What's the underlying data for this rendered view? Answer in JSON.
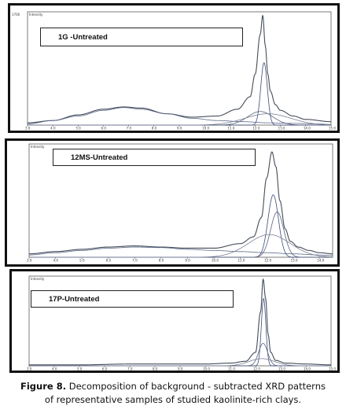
{
  "caption": {
    "figure_label": "Figure 8.",
    "line1": " Decomposition of background - subtracted XRD patterns",
    "line2": "of representative samples of  studied kaolinite-rich clays."
  },
  "chart_data": [
    {
      "type": "line",
      "title": "1G -Untreated",
      "ylabel": "Intensity",
      "ytick": "1700",
      "x_ticks": [
        "3.0",
        "4.0",
        "5.0",
        "6.0",
        "7.0",
        "8.0",
        "9.0",
        "10.0",
        "11.0",
        "12.0",
        "13.0",
        "14.0",
        "15.0"
      ],
      "xlim": [
        3,
        15
      ],
      "series": [
        {
          "role": "measured",
          "x": [
            3,
            4,
            5,
            6,
            6.8,
            7.5,
            8.5,
            9.5,
            10.5,
            11.3,
            11.8,
            12.0,
            12.2,
            12.3,
            12.4,
            12.5,
            12.6,
            12.8,
            13.0,
            13.5,
            14,
            15
          ],
          "y": [
            0.02,
            0.04,
            0.09,
            0.14,
            0.16,
            0.15,
            0.1,
            0.07,
            0.08,
            0.14,
            0.25,
            0.45,
            0.8,
            0.97,
            0.7,
            0.45,
            0.3,
            0.18,
            0.13,
            0.08,
            0.05,
            0.03
          ]
        },
        {
          "role": "fit-broad",
          "x": [
            3,
            4,
            5,
            6,
            6.8,
            7.5,
            8.5,
            9.5,
            10.5,
            11.5,
            12.5,
            13.5,
            14.5,
            15
          ],
          "y": [
            0.01,
            0.04,
            0.08,
            0.13,
            0.155,
            0.14,
            0.1,
            0.06,
            0.04,
            0.03,
            0.02,
            0.015,
            0.01,
            0.005
          ]
        },
        {
          "role": "fit-peak-1",
          "center": 12.35,
          "height": 0.55,
          "width": 0.13
        },
        {
          "role": "fit-peak-2",
          "center": 12.2,
          "height": 0.12,
          "width": 0.5
        },
        {
          "role": "fit-peak-3",
          "center": 12.5,
          "height": 0.1,
          "width": 0.9
        }
      ]
    },
    {
      "type": "line",
      "title": "12MS-Untreated",
      "ylabel": "Intensity",
      "ytick": "",
      "x_ticks": [
        "3.0",
        "4.0",
        "5.0",
        "6.0",
        "7.0",
        "8.0",
        "9.0",
        "10.0",
        "11.0",
        "12.0",
        "13.0",
        "14.0"
      ],
      "xlim": [
        3,
        14.5
      ],
      "series": [
        {
          "role": "measured",
          "x": [
            3,
            4,
            5,
            6,
            7,
            8,
            9,
            10,
            11,
            11.5,
            11.8,
            12.0,
            12.2,
            12.35,
            12.5,
            12.7,
            12.9,
            13.2,
            13.6,
            14,
            14.5
          ],
          "y": [
            0.03,
            0.05,
            0.07,
            0.09,
            0.1,
            0.09,
            0.08,
            0.08,
            0.12,
            0.18,
            0.35,
            0.7,
            0.93,
            0.8,
            0.5,
            0.25,
            0.14,
            0.09,
            0.06,
            0.04,
            0.03
          ]
        },
        {
          "role": "fit-broad",
          "x": [
            3,
            4,
            5,
            6,
            7,
            8,
            9,
            10,
            11,
            12,
            13,
            14,
            14.5
          ],
          "y": [
            0.02,
            0.04,
            0.06,
            0.08,
            0.09,
            0.085,
            0.07,
            0.06,
            0.05,
            0.04,
            0.03,
            0.02,
            0.015
          ]
        },
        {
          "role": "fit-peak-1",
          "center": 12.25,
          "height": 0.55,
          "width": 0.2
        },
        {
          "role": "fit-peak-2",
          "center": 12.4,
          "height": 0.4,
          "width": 0.25
        },
        {
          "role": "fit-peak-3",
          "center": 12.1,
          "height": 0.2,
          "width": 0.8
        }
      ]
    },
    {
      "type": "line",
      "title": "17P-Untreated",
      "ylabel": "Intensity",
      "ytick": "",
      "x_ticks": [
        "3.0",
        "4.0",
        "5.0",
        "6.0",
        "7.0",
        "8.0",
        "9.0",
        "10.0",
        "11.0",
        "12.0",
        "13.0",
        "14.0",
        "15.0"
      ],
      "xlim": [
        3,
        15
      ],
      "series": [
        {
          "role": "measured",
          "x": [
            3,
            5,
            7,
            9,
            10,
            11,
            11.6,
            12.0,
            12.2,
            12.3,
            12.4,
            12.5,
            12.6,
            12.8,
            13.2,
            14,
            15
          ],
          "y": [
            0.01,
            0.01,
            0.02,
            0.02,
            0.02,
            0.03,
            0.05,
            0.15,
            0.6,
            0.97,
            0.75,
            0.35,
            0.15,
            0.06,
            0.03,
            0.02,
            0.01
          ]
        },
        {
          "role": "fit-peak-1",
          "center": 12.32,
          "height": 0.75,
          "width": 0.09
        },
        {
          "role": "fit-peak-2",
          "center": 12.3,
          "height": 0.25,
          "width": 0.18
        },
        {
          "role": "fit-peak-3",
          "center": 12.25,
          "height": 0.08,
          "width": 0.5
        }
      ]
    }
  ]
}
